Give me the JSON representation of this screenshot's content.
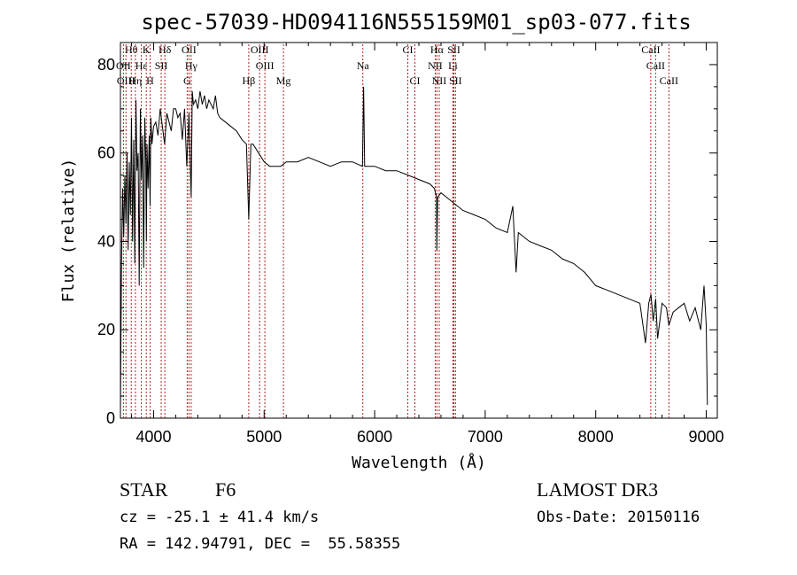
{
  "chart_data": {
    "type": "line",
    "title": "spec-57039-HD094116N555159M01_sp03-077.fits",
    "xlabel": "Wavelength (Å)",
    "ylabel": "Flux (relative)",
    "xlim": [
      3700,
      9100
    ],
    "ylim": [
      0,
      85
    ],
    "xticks": [
      4000,
      5000,
      6000,
      7000,
      8000,
      9000
    ],
    "yticks": [
      0,
      20,
      40,
      60,
      80
    ],
    "series": [
      {
        "name": "spectrum",
        "x": [
          3700,
          3710,
          3720,
          3730,
          3740,
          3750,
          3760,
          3770,
          3780,
          3790,
          3800,
          3810,
          3820,
          3830,
          3840,
          3850,
          3860,
          3870,
          3880,
          3890,
          3900,
          3910,
          3920,
          3930,
          3935,
          3940,
          3950,
          3960,
          3968,
          3975,
          3985,
          4000,
          4020,
          4040,
          4060,
          4080,
          4100,
          4120,
          4140,
          4160,
          4180,
          4200,
          4220,
          4240,
          4260,
          4280,
          4300,
          4320,
          4340,
          4350,
          4360,
          4380,
          4400,
          4420,
          4440,
          4460,
          4480,
          4500,
          4520,
          4540,
          4560,
          4580,
          4600,
          4650,
          4700,
          4750,
          4800,
          4840,
          4861,
          4880,
          4900,
          4950,
          5000,
          5050,
          5100,
          5150,
          5200,
          5300,
          5400,
          5500,
          5600,
          5700,
          5800,
          5890,
          5900,
          5910,
          6000,
          6100,
          6200,
          6300,
          6400,
          6500,
          6540,
          6560,
          6563,
          6570,
          6600,
          6700,
          6800,
          6900,
          7000,
          7100,
          7200,
          7250,
          7280,
          7300,
          7400,
          7500,
          7600,
          7700,
          7800,
          7900,
          8000,
          8100,
          8200,
          8300,
          8400,
          8450,
          8480,
          8500,
          8520,
          8542,
          8560,
          8600,
          8640,
          8662,
          8700,
          8750,
          8800,
          8850,
          8900,
          8950,
          8980,
          9000,
          9010
        ],
        "y": [
          2,
          35,
          52,
          41,
          55,
          44,
          60,
          38,
          58,
          46,
          68,
          40,
          63,
          35,
          72,
          56,
          60,
          30,
          70,
          54,
          64,
          34,
          68,
          58,
          40,
          62,
          52,
          64,
          48,
          68,
          62,
          66,
          67,
          64,
          70,
          66,
          62,
          69,
          67,
          65,
          70,
          70,
          68,
          69,
          63,
          70,
          57,
          69,
          50,
          74,
          71,
          72,
          70,
          74,
          71,
          73,
          70,
          72,
          71,
          70,
          73,
          69,
          68,
          67,
          66,
          65,
          63,
          62,
          45,
          62,
          62,
          60,
          58,
          57,
          57,
          57,
          58,
          58,
          59,
          58,
          57,
          58,
          58,
          57,
          75,
          57,
          57,
          56,
          56,
          55,
          54,
          53,
          52,
          50,
          38,
          50,
          51,
          49,
          47,
          46,
          45,
          43,
          42,
          48,
          33,
          42,
          40,
          39,
          38,
          36,
          35,
          33,
          30,
          29,
          28,
          27,
          26,
          17,
          26,
          28,
          22,
          27,
          18,
          26,
          25,
          21,
          24,
          25,
          26,
          22,
          25,
          20,
          30,
          21,
          3
        ]
      }
    ],
    "spectral_lines": [
      {
        "label": "Hθ",
        "wave": 3798,
        "row": 0
      },
      {
        "label": "K",
        "wave": 3934,
        "row": 0
      },
      {
        "label": "Hδ",
        "wave": 4102,
        "row": 0
      },
      {
        "label": "OII",
        "wave": 4320,
        "row": 0
      },
      {
        "label": "OIII",
        "wave": 4959,
        "row": 0
      },
      {
        "label": "CI",
        "wave": 6300,
        "row": 0
      },
      {
        "label": "Hα",
        "wave": 6563,
        "row": 0
      },
      {
        "label": "SII",
        "wave": 6717,
        "row": 0
      },
      {
        "label": "CaII",
        "wave": 8498,
        "row": 0
      },
      {
        "label": "OII",
        "wave": 3727,
        "row": 1
      },
      {
        "label": "Hε",
        "wave": 3889,
        "row": 1
      },
      {
        "label": "SII",
        "wave": 4069,
        "row": 1
      },
      {
        "label": "Hγ",
        "wave": 4340,
        "row": 1
      },
      {
        "label": "OIII",
        "wave": 5007,
        "row": 1
      },
      {
        "label": "Na",
        "wave": 5893,
        "row": 1
      },
      {
        "label": "NII",
        "wave": 6548,
        "row": 1
      },
      {
        "label": "Li",
        "wave": 6708,
        "row": 1
      },
      {
        "label": "CaII",
        "wave": 8542,
        "row": 1
      },
      {
        "label": "OIII",
        "wave": 3750,
        "row": 2
      },
      {
        "label": "Hη",
        "wave": 3835,
        "row": 2
      },
      {
        "label": "H",
        "wave": 3968,
        "row": 2
      },
      {
        "label": "G",
        "wave": 4304,
        "row": 2
      },
      {
        "label": "Hβ",
        "wave": 4861,
        "row": 2
      },
      {
        "label": "Mg",
        "wave": 5175,
        "row": 2
      },
      {
        "label": "CI",
        "wave": 6364,
        "row": 2
      },
      {
        "label": "NII",
        "wave": 6584,
        "row": 2
      },
      {
        "label": "SII",
        "wave": 6731,
        "row": 2
      },
      {
        "label": "CaII",
        "wave": 8662,
        "row": 2
      }
    ],
    "line_color": "#b22222",
    "spectrum_color": "#000000"
  },
  "info": {
    "object_class": "STAR",
    "subclass": "F6",
    "survey": "LAMOST DR3",
    "redshift": "cz = -25.1 ± 41.4 km/s",
    "obs_date": "Obs-Date: 20150116",
    "coords": "RA = 142.94791, DEC =  55.58355"
  }
}
